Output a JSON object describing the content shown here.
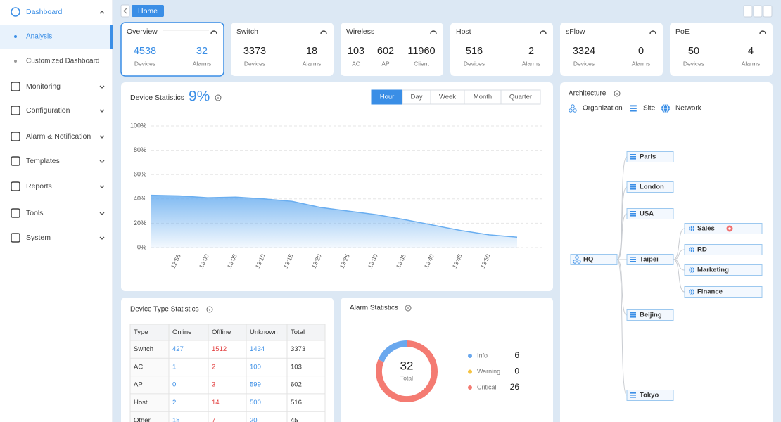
{
  "sidebar": {
    "menu": [
      {
        "label": "Dashboard",
        "submenu": [
          {
            "label": "Analysis"
          },
          {
            "label": "Customized Dashboard"
          }
        ]
      },
      {
        "label": "Monitoring"
      },
      {
        "label": "Configuration"
      },
      {
        "label": "Alarm & Notification"
      },
      {
        "label": "Templates"
      },
      {
        "label": "Reports"
      },
      {
        "label": "Tools"
      },
      {
        "label": "System"
      }
    ]
  },
  "breadcrumb": {
    "tab": "Home"
  },
  "summary_cards": [
    {
      "title": "Overview",
      "stats": [
        {
          "value": 4538,
          "label": "Devices"
        },
        {
          "value": 32,
          "label": "Alarms"
        }
      ]
    },
    {
      "title": "Switch",
      "stats": [
        {
          "value": 3373,
          "label": "Devices"
        },
        {
          "value": 18,
          "label": "Alarms"
        }
      ]
    },
    {
      "title": "Wireless",
      "stats": [
        {
          "value": 103,
          "label": "AC"
        },
        {
          "value": 602,
          "label": "AP"
        },
        {
          "value": 11960,
          "label": "Client"
        }
      ]
    },
    {
      "title": "Host",
      "stats": [
        {
          "value": 516,
          "label": "Devices"
        },
        {
          "value": 2,
          "label": "Alarms"
        }
      ]
    },
    {
      "title": "sFlow",
      "stats": [
        {
          "value": 3324,
          "label": "Devices"
        },
        {
          "value": 0,
          "label": "Alarms"
        }
      ]
    },
    {
      "title": "PoE",
      "stats": [
        {
          "value": 50,
          "label": "Devices"
        },
        {
          "value": 4,
          "label": "Alarms"
        }
      ]
    }
  ],
  "device_statistics": {
    "title": "Device Statistics",
    "percentage": "9%",
    "tabs": [
      "Hour",
      "Day",
      "Week",
      "Month",
      "Quarter"
    ],
    "chart": {
      "type": "area",
      "color": "#6aaef0",
      "categories": [
        null,
        "12:55",
        "13:00",
        "13:05",
        "13:10",
        "13:15",
        "13:20",
        "13:25",
        "13:30",
        "13:35",
        "13:40",
        "13:45",
        "13:50",
        null
      ],
      "values": [
        43,
        42.5,
        41,
        41.5,
        40,
        38,
        33,
        30,
        27,
        23,
        18.5,
        14,
        10.5,
        8.5
      ],
      "ylim": [
        0,
        100
      ],
      "yticks": [
        {
          "value": 0,
          "label": "0%"
        },
        {
          "value": 20,
          "label": "20%"
        },
        {
          "value": 40,
          "label": "40%"
        },
        {
          "value": 60,
          "label": "60%"
        },
        {
          "value": 80,
          "label": "80%"
        },
        {
          "value": 100,
          "label": "100%"
        }
      ],
      "grid": true
    }
  },
  "device_type_statistics": {
    "title": "Device Type Statistics",
    "table": {
      "columns": [
        "Type",
        "Online",
        "Offline",
        "Unknown",
        "Total"
      ],
      "rows": [
        [
          "Switch",
          427,
          1512,
          1434,
          3373
        ],
        [
          "AC",
          1,
          2,
          100,
          103
        ],
        [
          "AP",
          0,
          3,
          599,
          602
        ],
        [
          "Host",
          2,
          14,
          500,
          516
        ],
        [
          "Other",
          18,
          7,
          20,
          45
        ]
      ]
    }
  },
  "alarm_statistics": {
    "title": "Alarm Statistics",
    "total": 32,
    "total_label": "Total",
    "chart": {
      "type": "donut",
      "categories": [
        "Info",
        "Warning",
        "Critical"
      ],
      "values": [
        6,
        0,
        26
      ],
      "colors": [
        "#6aa8ee",
        "#f5c342",
        "#f47b72"
      ]
    }
  },
  "architecture": {
    "title": "Architecture",
    "legend": [
      "Organization",
      "Site",
      "Network"
    ],
    "tree": {
      "label": "HQ",
      "children": [
        {
          "label": "Paris"
        },
        {
          "label": "London"
        },
        {
          "label": "USA"
        },
        {
          "label": "Taipei",
          "children": [
            {
              "label": "Sales"
            },
            {
              "label": "RD"
            },
            {
              "label": "Marketing"
            },
            {
              "label": "Finance"
            }
          ]
        },
        {
          "label": "Beijing"
        },
        {
          "label": "Tokyo"
        }
      ]
    }
  }
}
